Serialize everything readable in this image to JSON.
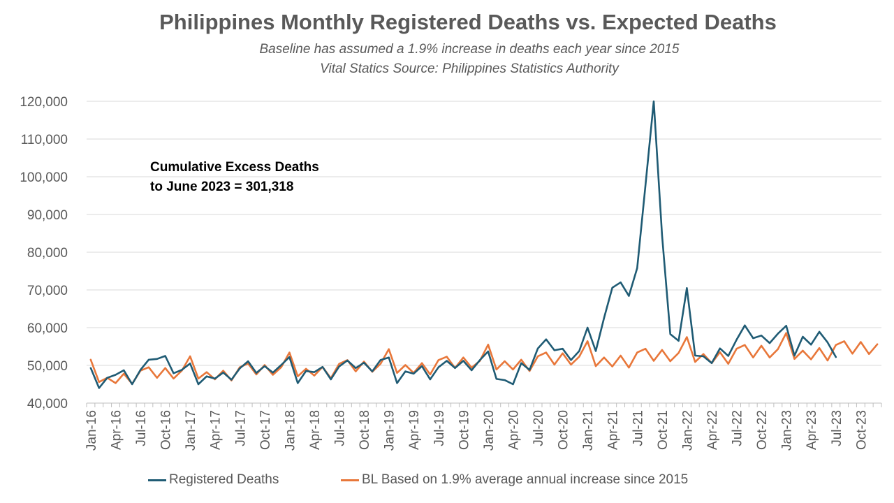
{
  "chart_data": {
    "type": "line",
    "title": "Philippines Monthly Registered Deaths vs. Expected Deaths",
    "subtitle": [
      "Baseline has assumed a 1.9% increase in deaths each year since 2015",
      "Vital Statics Source: Philippines Statistics Authority"
    ],
    "annotation": [
      "Cumulative Excess Deaths",
      "to June 2023 = 301,318"
    ],
    "xlabel": "",
    "ylabel": "",
    "ylim": [
      40000,
      120000
    ],
    "yticks": [
      "40,000",
      "50,000",
      "60,000",
      "70,000",
      "80,000",
      "90,000",
      "100,000",
      "110,000",
      "120,000"
    ],
    "yticks_values": [
      40000,
      50000,
      60000,
      70000,
      80000,
      90000,
      100000,
      110000,
      120000
    ],
    "xtick_labels": [
      "Jan-16",
      "Apr-16",
      "Jul-16",
      "Oct-16",
      "Jan-17",
      "Apr-17",
      "Jul-17",
      "Oct-17",
      "Jan-18",
      "Apr-18",
      "Jul-18",
      "Oct-18",
      "Jan-19",
      "Apr-19",
      "Jul-19",
      "Oct-19",
      "Jan-20",
      "Apr-20",
      "Jul-20",
      "Oct-20",
      "Jan-21",
      "Apr-21",
      "Jul-21",
      "Oct-21",
      "Jan-22",
      "Apr-22",
      "Jul-22",
      "Oct-22",
      "Jan-23",
      "Apr-23",
      "Jul-23",
      "Oct-23"
    ],
    "x_start": "Jan-16",
    "x_end": "Dec-23",
    "grid": "horizontal",
    "legend_position": "bottom",
    "series": [
      {
        "name": "Registered Deaths",
        "color": "#1f5b74",
        "values": [
          49300,
          44000,
          46700,
          47500,
          48700,
          45000,
          48800,
          51500,
          51700,
          52500,
          47900,
          48800,
          50500,
          45000,
          47100,
          46500,
          48100,
          46200,
          49200,
          51100,
          48000,
          49800,
          48100,
          50100,
          52200,
          45300,
          48500,
          48200,
          49600,
          46300,
          49700,
          51300,
          49300,
          50700,
          48400,
          51400,
          52100,
          45300,
          48400,
          47800,
          49800,
          46300,
          49500,
          51200,
          49300,
          51200,
          48700,
          51400,
          53700,
          46400,
          46100,
          45000,
          50600,
          48800,
          54500,
          56900,
          54000,
          54400,
          51400,
          53800,
          60000,
          53800,
          62600,
          70600,
          72000,
          68400,
          75800,
          97800,
          120000,
          84500,
          58300,
          56500,
          70500,
          52600,
          52400,
          50600,
          54500,
          52500,
          56800,
          60600,
          57200,
          57900,
          55900,
          58400,
          60500,
          52600,
          57600,
          55500,
          58900,
          56100,
          52200
        ]
      },
      {
        "name": "BL Based on 1.9% average annual increase since 2015",
        "color": "#e8773a",
        "values": [
          51500,
          45600,
          46700,
          45300,
          47800,
          45100,
          48600,
          49500,
          46700,
          49300,
          46500,
          48600,
          52400,
          46500,
          48200,
          46300,
          48600,
          46000,
          49500,
          50500,
          47600,
          50100,
          47500,
          49500,
          53400,
          47100,
          49100,
          47300,
          49600,
          46600,
          50400,
          51400,
          48400,
          51000,
          48300,
          50400,
          54300,
          48000,
          50100,
          48000,
          50600,
          47600,
          51400,
          52300,
          49300,
          52100,
          49400,
          51200,
          55500,
          48900,
          51100,
          48900,
          51500,
          48500,
          52400,
          53400,
          50200,
          53200,
          50200,
          52300,
          56400,
          49800,
          52100,
          49700,
          52600,
          49400,
          53400,
          54400,
          51200,
          54100,
          51100,
          53300,
          57500,
          50900,
          53000,
          50600,
          53500,
          50400,
          54400,
          55400,
          52100,
          55200,
          52100,
          54300,
          58600,
          51700,
          53900,
          51600,
          54600,
          51300,
          55400,
          56400,
          53100,
          56200,
          53000,
          55600
        ]
      }
    ]
  },
  "legend": {
    "item1": "Registered Deaths",
    "item2": "BL Based on 1.9% average annual increase since 2015"
  }
}
